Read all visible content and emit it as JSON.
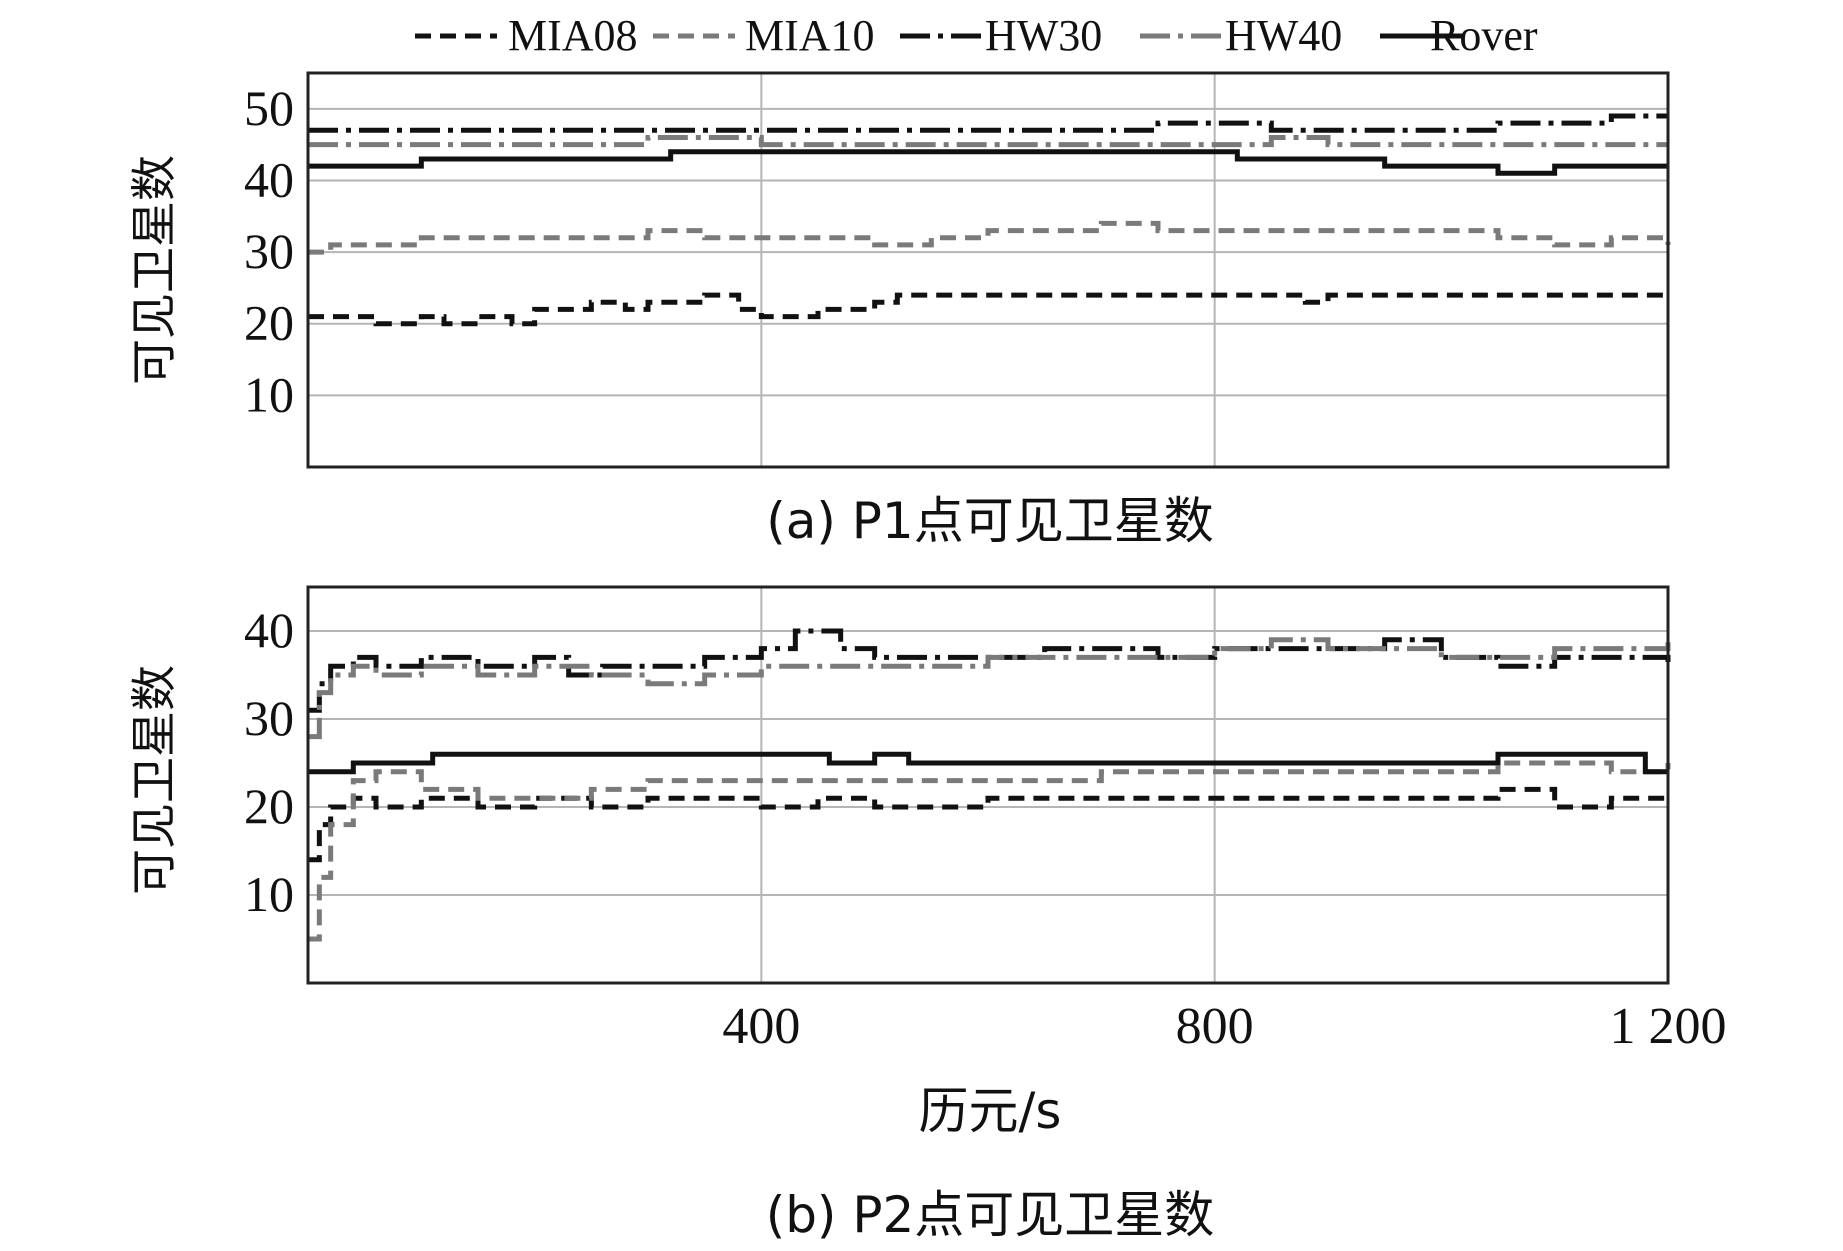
{
  "legend": [
    {
      "name": "MIA08",
      "color": "#111111",
      "dash": "16 9",
      "width": 5
    },
    {
      "name": "MIA10",
      "color": "#7a7a7a",
      "dash": "16 9",
      "width": 5
    },
    {
      "name": "HW30",
      "color": "#111111",
      "dash": "30 8 5 8",
      "width": 5
    },
    {
      "name": "HW40",
      "color": "#7a7a7a",
      "dash": "30 8 5 8",
      "width": 5
    },
    {
      "name": "Rover",
      "color": "#111111",
      "dash": "",
      "width": 5
    }
  ],
  "chart_data": [
    {
      "type": "line",
      "title": "(a) P1点可见卫星数",
      "ylabel": "可见卫星数",
      "xlabel": "",
      "xlim": [
        0,
        1200
      ],
      "ylim": [
        0,
        55
      ],
      "yticks": [
        10,
        20,
        30,
        40,
        50
      ],
      "xgrid": [
        0,
        400,
        800,
        1200
      ],
      "series": [
        {
          "name": "MIA08",
          "x": [
            0,
            30,
            60,
            100,
            120,
            150,
            180,
            200,
            230,
            250,
            280,
            300,
            330,
            350,
            380,
            400,
            450,
            500,
            520,
            550,
            600,
            700,
            800,
            880,
            900,
            950,
            1000,
            1100,
            1200
          ],
          "values": [
            21,
            21,
            20,
            21,
            20,
            21,
            20,
            22,
            22,
            23,
            22,
            23,
            23,
            24,
            22,
            21,
            22,
            23,
            24,
            24,
            24,
            24,
            24,
            23,
            24,
            24,
            24,
            24,
            24
          ]
        },
        {
          "name": "MIA10",
          "x": [
            0,
            20,
            50,
            100,
            150,
            200,
            300,
            350,
            400,
            450,
            500,
            550,
            600,
            650,
            700,
            750,
            800,
            850,
            900,
            950,
            1000,
            1050,
            1100,
            1150,
            1200
          ],
          "values": [
            30,
            31,
            31,
            32,
            32,
            32,
            33,
            32,
            32,
            32,
            31,
            32,
            33,
            33,
            34,
            33,
            33,
            33,
            33,
            33,
            33,
            32,
            31,
            32,
            31
          ]
        },
        {
          "name": "HW30",
          "x": [
            0,
            100,
            200,
            300,
            400,
            500,
            600,
            700,
            750,
            800,
            850,
            900,
            1000,
            1050,
            1100,
            1150,
            1200
          ],
          "values": [
            47,
            47,
            47,
            47,
            47,
            47,
            47,
            47,
            48,
            48,
            47,
            47,
            47,
            48,
            48,
            49,
            49
          ]
        },
        {
          "name": "HW40",
          "x": [
            0,
            100,
            200,
            300,
            400,
            500,
            600,
            700,
            800,
            850,
            900,
            1000,
            1100,
            1150,
            1200
          ],
          "values": [
            45,
            45,
            45,
            46,
            45,
            45,
            45,
            45,
            45,
            46,
            45,
            45,
            45,
            45,
            45
          ]
        },
        {
          "name": "Rover",
          "x": [
            0,
            80,
            100,
            150,
            200,
            300,
            320,
            400,
            500,
            600,
            700,
            800,
            820,
            850,
            900,
            950,
            1000,
            1050,
            1100,
            1150,
            1200
          ],
          "values": [
            42,
            42,
            43,
            43,
            43,
            43,
            44,
            44,
            44,
            44,
            44,
            44,
            43,
            43,
            43,
            42,
            42,
            41,
            42,
            42,
            42
          ]
        }
      ]
    },
    {
      "type": "line",
      "title": "(b) P2点可见卫星数",
      "ylabel": "可见卫星数",
      "xlabel": "历元/s",
      "xlim": [
        0,
        1200
      ],
      "ylim": [
        0,
        45
      ],
      "yticks": [
        10,
        20,
        30,
        40
      ],
      "xticks": [
        400,
        800,
        1200
      ],
      "xtick_labels": [
        "400",
        "800",
        "1 200"
      ],
      "xgrid": [
        0,
        400,
        800,
        1200
      ],
      "series": [
        {
          "name": "MIA08",
          "x": [
            0,
            10,
            20,
            40,
            60,
            100,
            150,
            200,
            250,
            300,
            350,
            400,
            450,
            500,
            600,
            700,
            800,
            900,
            1000,
            1050,
            1100,
            1150,
            1200
          ],
          "values": [
            14,
            18,
            20,
            21,
            20,
            21,
            20,
            21,
            20,
            21,
            21,
            20,
            21,
            20,
            21,
            21,
            21,
            21,
            21,
            22,
            20,
            21,
            21
          ]
        },
        {
          "name": "MIA10",
          "x": [
            0,
            10,
            20,
            40,
            60,
            100,
            150,
            200,
            250,
            300,
            350,
            400,
            450,
            500,
            600,
            700,
            800,
            900,
            1000,
            1050,
            1100,
            1150,
            1200
          ],
          "values": [
            5,
            12,
            18,
            23,
            24,
            22,
            21,
            21,
            22,
            23,
            23,
            23,
            23,
            23,
            23,
            24,
            24,
            24,
            24,
            25,
            25,
            24,
            25
          ]
        },
        {
          "name": "HW30",
          "x": [
            0,
            10,
            20,
            40,
            60,
            100,
            150,
            200,
            230,
            260,
            300,
            350,
            400,
            430,
            470,
            500,
            550,
            600,
            650,
            700,
            750,
            800,
            850,
            900,
            950,
            1000,
            1050,
            1100,
            1150,
            1200
          ],
          "values": [
            31,
            34,
            36,
            37,
            36,
            37,
            36,
            37,
            35,
            36,
            36,
            37,
            38,
            40,
            38,
            37,
            37,
            37,
            38,
            38,
            37,
            38,
            38,
            38,
            39,
            37,
            36,
            37,
            37,
            36
          ]
        },
        {
          "name": "HW40",
          "x": [
            0,
            10,
            20,
            40,
            60,
            100,
            150,
            200,
            250,
            300,
            350,
            400,
            450,
            500,
            550,
            600,
            650,
            700,
            750,
            800,
            850,
            900,
            950,
            1000,
            1050,
            1100,
            1150,
            1200
          ],
          "values": [
            28,
            33,
            35,
            36,
            35,
            36,
            35,
            36,
            35,
            34,
            35,
            36,
            36,
            36,
            36,
            37,
            37,
            37,
            37,
            38,
            39,
            38,
            38,
            37,
            37,
            38,
            38,
            39
          ]
        },
        {
          "name": "Rover",
          "x": [
            0,
            20,
            40,
            100,
            110,
            200,
            300,
            400,
            450,
            460,
            500,
            530,
            600,
            700,
            800,
            900,
            1000,
            1050,
            1100,
            1150,
            1180,
            1200
          ],
          "values": [
            24,
            24,
            25,
            25,
            26,
            26,
            26,
            26,
            26,
            25,
            26,
            25,
            25,
            25,
            25,
            25,
            25,
            26,
            26,
            26,
            24,
            24
          ]
        }
      ]
    }
  ]
}
